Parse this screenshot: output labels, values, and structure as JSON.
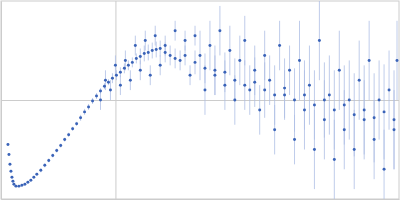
{
  "chart_data": {
    "type": "scatter",
    "color": "#3a63b8",
    "marker": "circle",
    "grid": true,
    "tick_labels": false,
    "xlim": [
      0,
      4
    ],
    "xticks": [
      1.15
    ],
    "ylim": [
      0,
      2
    ],
    "yticks": [
      1
    ],
    "x": [
      0.07,
      0.08,
      0.09,
      0.1,
      0.11,
      0.12,
      0.13,
      0.15,
      0.18,
      0.21,
      0.24,
      0.27,
      0.3,
      0.33,
      0.36,
      0.4,
      0.44,
      0.48,
      0.52,
      0.56,
      0.6,
      0.64,
      0.68,
      0.72,
      0.76,
      0.8,
      0.84,
      0.88,
      0.92,
      0.96,
      1.0,
      1.04,
      1.08,
      1.12,
      1.16,
      1.2,
      1.24,
      1.28,
      1.32,
      1.36,
      1.4,
      1.44,
      1.48,
      1.52,
      1.56,
      1.6,
      1.0,
      1.05,
      1.1,
      1.15,
      1.2,
      1.25,
      1.3,
      1.35,
      1.4,
      1.45,
      1.5,
      1.55,
      1.6,
      1.65,
      1.7,
      1.75,
      1.8,
      1.85,
      1.9,
      1.95,
      2.0,
      2.05,
      2.1,
      2.15,
      2.2,
      2.25,
      2.3,
      2.35,
      2.4,
      2.45,
      2.5,
      2.55,
      2.6,
      2.65,
      2.7,
      2.75,
      2.8,
      2.85,
      2.9,
      2.95,
      3.0,
      3.05,
      3.1,
      3.15,
      3.2,
      3.25,
      3.3,
      3.35,
      3.4,
      3.45,
      3.5,
      3.55,
      3.6,
      3.65,
      3.7,
      3.75,
      3.8,
      3.85,
      3.9,
      3.95,
      3.98,
      1.65,
      1.75,
      1.85,
      1.95,
      2.05,
      2.15,
      2.25,
      2.35,
      2.45,
      2.55,
      2.65,
      2.75,
      2.85,
      2.95,
      3.05,
      3.15,
      3.25,
      3.35,
      3.45,
      3.55,
      3.65,
      3.75,
      3.85,
      3.95
    ],
    "values": [
      0.55,
      0.45,
      0.35,
      0.28,
      0.22,
      0.18,
      0.15,
      0.13,
      0.13,
      0.14,
      0.15,
      0.17,
      0.19,
      0.22,
      0.25,
      0.29,
      0.34,
      0.39,
      0.44,
      0.49,
      0.54,
      0.6,
      0.65,
      0.71,
      0.76,
      0.82,
      0.88,
      0.93,
      0.99,
      1.04,
      1.09,
      1.14,
      1.18,
      1.22,
      1.25,
      1.28,
      1.32,
      1.35,
      1.38,
      1.42,
      1.44,
      1.47,
      1.48,
      1.5,
      1.51,
      1.52,
      1.0,
      1.2,
      1.1,
      1.35,
      1.15,
      1.4,
      1.2,
      1.55,
      1.3,
      1.6,
      1.25,
      1.65,
      1.35,
      1.55,
      1.45,
      1.7,
      1.4,
      1.6,
      1.25,
      1.65,
      1.45,
      1.1,
      1.55,
      1.3,
      1.7,
      1.15,
      1.5,
      1.0,
      1.4,
      1.6,
      1.1,
      1.3,
      0.9,
      1.45,
      1.2,
      0.7,
      1.55,
      1.05,
      1.3,
      0.6,
      1.4,
      0.9,
      1.15,
      0.5,
      1.6,
      0.8,
      1.05,
      0.4,
      1.3,
      0.7,
      1.0,
      0.5,
      1.2,
      0.8,
      1.4,
      0.6,
      1.0,
      0.3,
      1.1,
      0.7,
      1.4,
      1.48,
      1.42,
      1.45,
      1.38,
      1.32,
      1.25,
      1.28,
      1.2,
      1.15,
      1.18,
      1.1,
      1.05,
      1.12,
      1.0,
      1.05,
      0.95,
      1.0,
      0.9,
      0.95,
      0.85,
      0.9,
      0.82,
      0.88,
      0.8
    ],
    "errors": [
      0.01,
      0.01,
      0.01,
      0.01,
      0.01,
      0.01,
      0.01,
      0.01,
      0.01,
      0.01,
      0.01,
      0.01,
      0.01,
      0.01,
      0.01,
      0.02,
      0.02,
      0.02,
      0.02,
      0.02,
      0.02,
      0.02,
      0.02,
      0.02,
      0.02,
      0.03,
      0.03,
      0.03,
      0.03,
      0.03,
      0.03,
      0.03,
      0.03,
      0.05,
      0.05,
      0.05,
      0.05,
      0.05,
      0.05,
      0.05,
      0.08,
      0.08,
      0.08,
      0.08,
      0.08,
      0.08,
      0.1,
      0.1,
      0.1,
      0.1,
      0.1,
      0.1,
      0.1,
      0.1,
      0.1,
      0.1,
      0.1,
      0.1,
      0.1,
      0.1,
      0.1,
      0.1,
      0.1,
      0.1,
      0.1,
      0.1,
      0.25,
      0.25,
      0.25,
      0.25,
      0.25,
      0.25,
      0.25,
      0.25,
      0.25,
      0.25,
      0.25,
      0.25,
      0.25,
      0.25,
      0.25,
      0.25,
      0.25,
      0.25,
      0.25,
      0.25,
      0.4,
      0.4,
      0.4,
      0.4,
      0.4,
      0.4,
      0.4,
      0.4,
      0.4,
      0.4,
      0.4,
      0.4,
      0.4,
      0.4,
      0.4,
      0.4,
      0.4,
      0.4,
      0.4,
      0.4,
      0.4,
      0.1,
      0.1,
      0.1,
      0.12,
      0.15,
      0.2,
      0.2,
      0.22,
      0.25,
      0.25,
      0.28,
      0.3,
      0.3,
      0.32,
      0.35,
      0.35,
      0.38,
      0.4,
      0.4,
      0.42,
      0.45,
      0.45,
      0.48,
      0.5
    ]
  }
}
